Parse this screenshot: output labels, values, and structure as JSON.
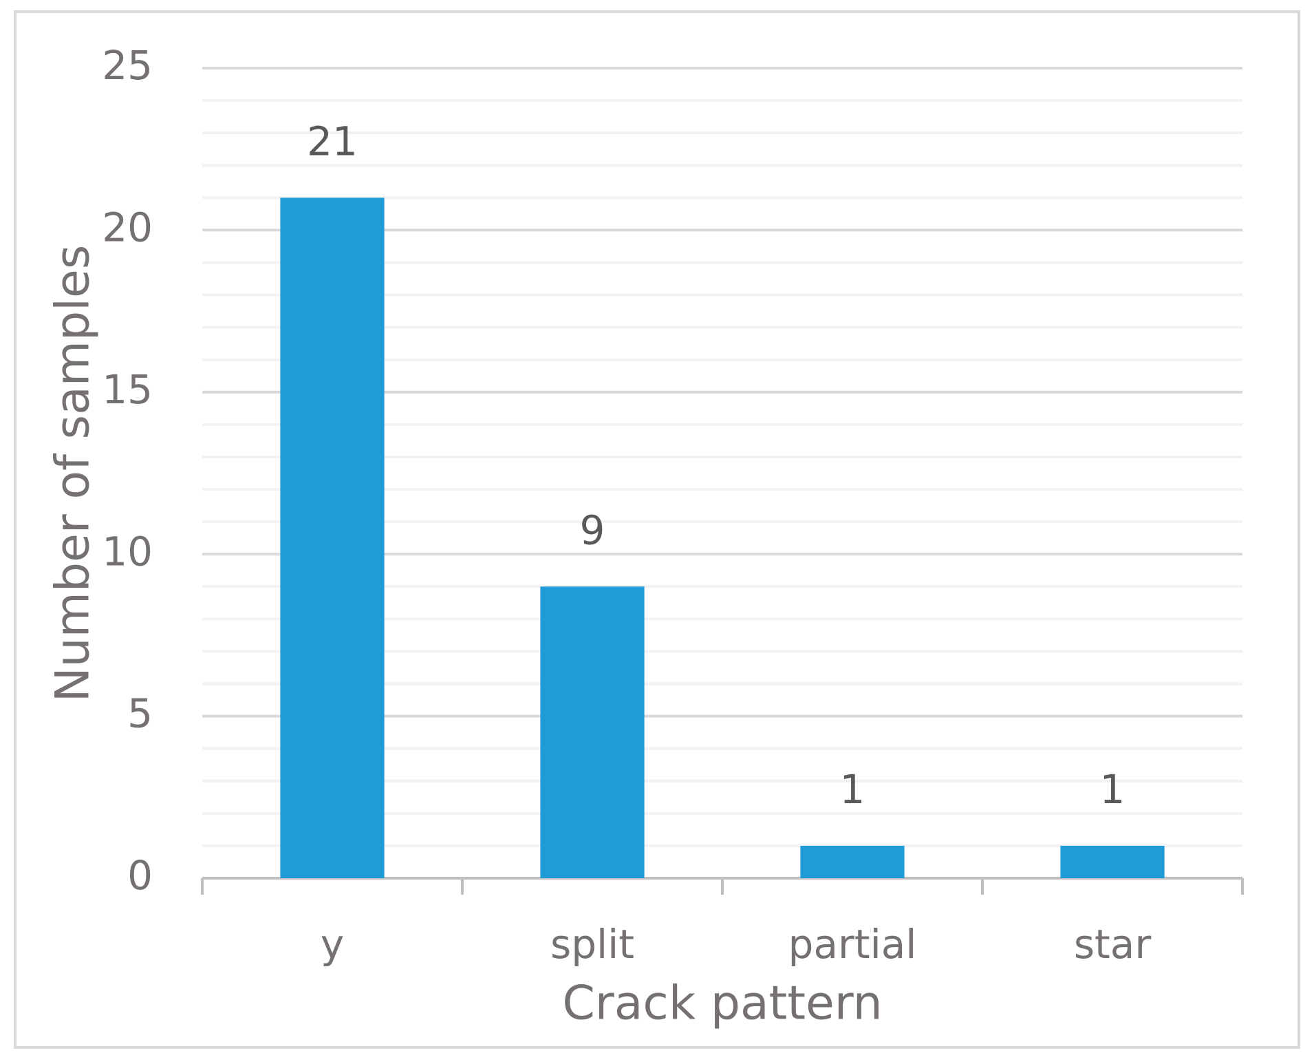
{
  "chart_data": {
    "type": "bar",
    "x_label": "Crack pattern",
    "y_label": "Number of samples",
    "categories": [
      "y",
      "split",
      "partial",
      "star"
    ],
    "values": [
      21,
      9,
      1,
      1
    ],
    "color": "#1f9bd8",
    "ylim": [
      0,
      25
    ],
    "yticks": [
      0,
      5,
      10,
      15,
      20,
      25
    ],
    "yminorticks": [
      1,
      2,
      3,
      4,
      6,
      7,
      8,
      9,
      11,
      12,
      13,
      14,
      16,
      17,
      18,
      19,
      21,
      22,
      23,
      24
    ],
    "grid": true
  }
}
